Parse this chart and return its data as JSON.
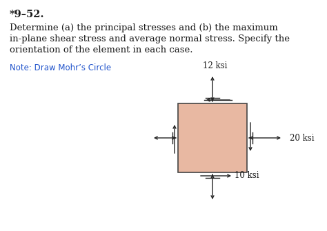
{
  "title": "*9–52.",
  "problem_text_line1": "Determine (a) the principal stresses and (b) the maximum",
  "problem_text_line2": "in-plane shear stress and average normal stress. Specify the",
  "problem_text_line3": "orientation of the element in each case.",
  "note_text": "Note: Draw Mohr’s Circle",
  "note_color": "#2255cc",
  "background_color": "#ffffff",
  "box_color": "#e8b8a2",
  "box_edge_color": "#444444",
  "stress_top_label": "12 ksi",
  "stress_right_label": "20 ksi",
  "stress_bottom_label": "10 ksi",
  "arrow_color": "#222222",
  "text_color": "#1a1a1a",
  "font_size_title": 10.5,
  "font_size_body": 9.5,
  "font_size_note": 8.5,
  "font_size_stress": 8.5
}
